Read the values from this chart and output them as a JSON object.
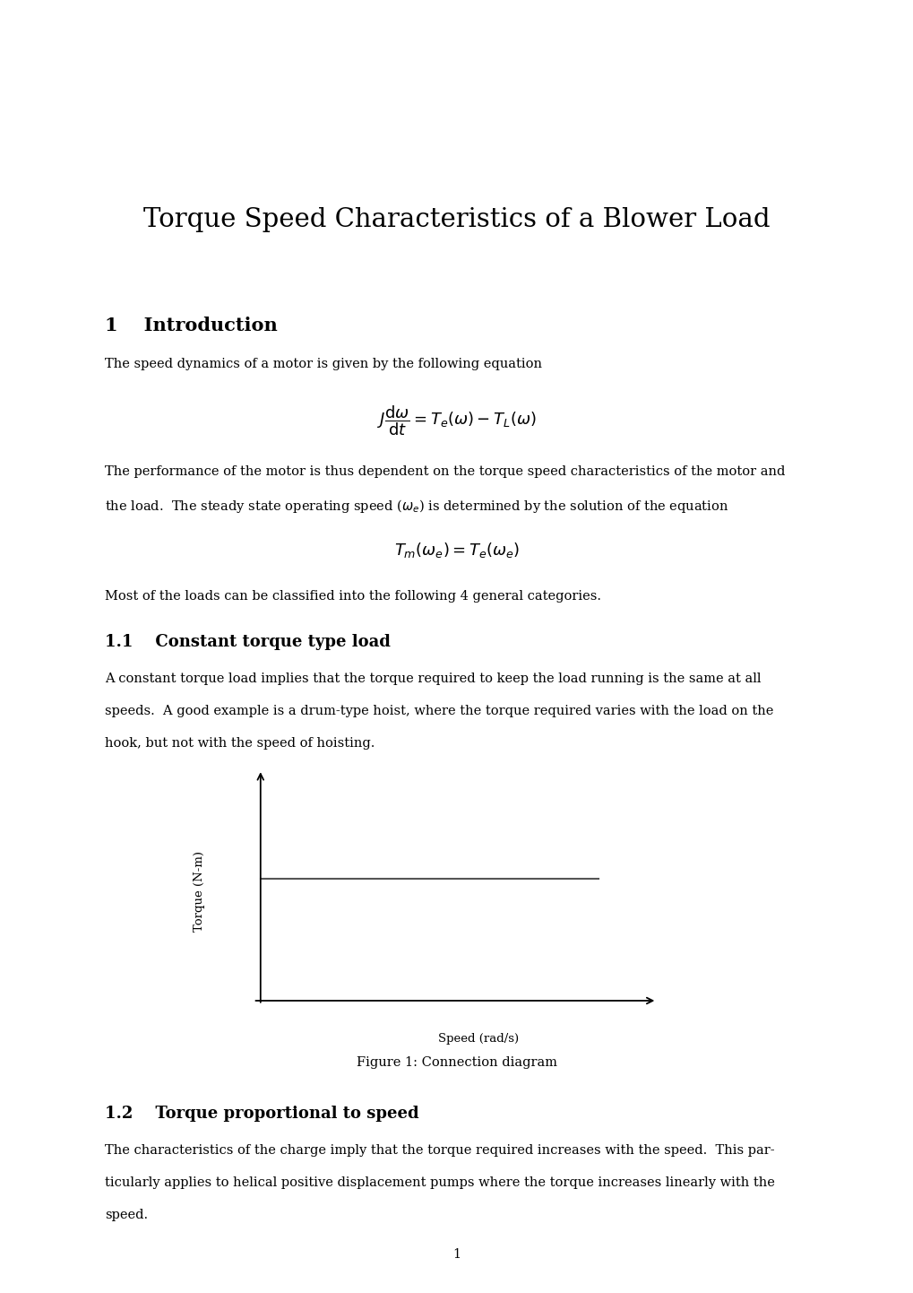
{
  "title": "Torque Speed Characteristics of a Blower Load",
  "section1_num": "1",
  "section1_title": "Introduction",
  "section1_text1": "The speed dynamics of a motor is given by the following equation",
  "section1_text2a": "The performance of the motor is thus dependent on the torque speed characteristics of the motor and",
  "section1_text2b": "the load.  The steady state operating speed ($\\omega_e$) is determined by the solution of the equation",
  "section1_text3": "Most of the loads can be classified into the following 4 general categories.",
  "section11_num": "1.1",
  "section11_title": "Constant torque type load",
  "section11_text1": "A constant torque load implies that the torque required to keep the load running is the same at all",
  "section11_text2": "speeds.  A good example is a drum-type hoist, where the torque required varies with the load on the",
  "section11_text3": "hook, but not with the speed of hoisting.",
  "fig1_ylabel": "Torque (N-m)",
  "fig1_xlabel": "Speed (rad/s)",
  "fig1_caption": "Figure 1: Connection diagram",
  "section12_num": "1.2",
  "section12_title": "Torque proportional to speed",
  "section12_text1": "The characteristics of the charge imply that the torque required increases with the speed.  This par-",
  "section12_text2": "ticularly applies to helical positive displacement pumps where the torque increases linearly with the",
  "section12_text3": "speed.",
  "page_number": "1",
  "background_color": "#ffffff",
  "text_color": "#000000"
}
